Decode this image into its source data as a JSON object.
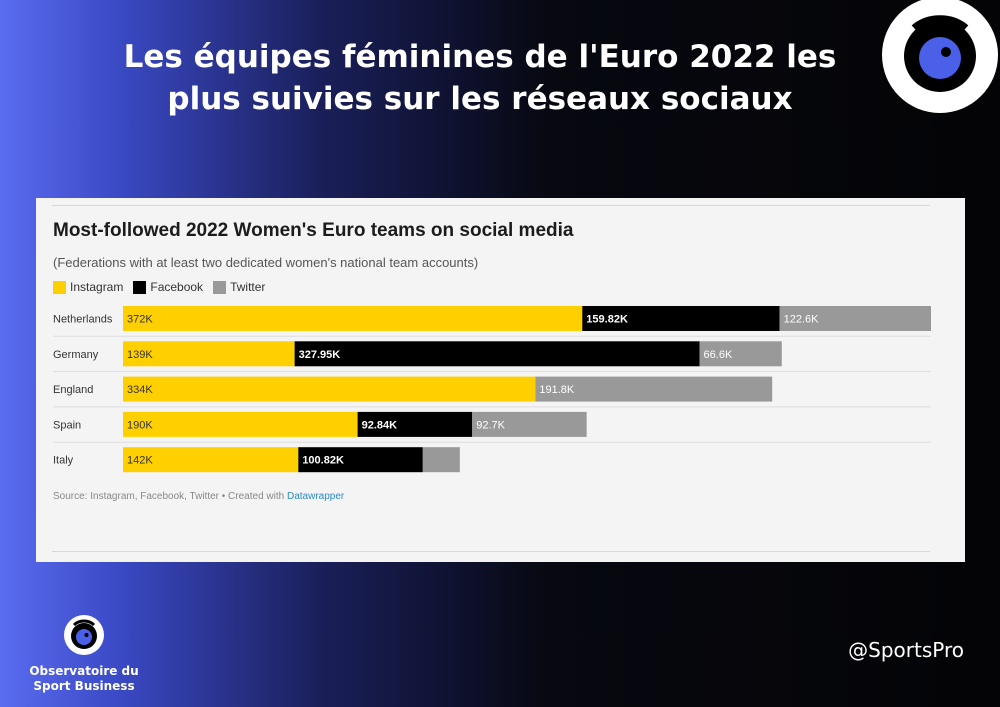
{
  "headline": {
    "line1": "Les équipes féminines de l'Euro 2022 les",
    "line2": "plus suivies sur les réseaux sociaux"
  },
  "brand": {
    "line1": "Observatoire du",
    "line2": "Sport Business",
    "icon": "eye-logo-icon"
  },
  "handle": "@SportsPro",
  "colors": {
    "instagram": "#ffd000",
    "facebook": "#000000",
    "twitter": "#999999",
    "accent": "#4a60e8"
  },
  "chart_data": {
    "type": "bar",
    "orientation": "horizontal",
    "stacked": true,
    "title": "Most-followed 2022 Women's Euro teams on social media",
    "subtitle": "(Federations with at least two dedicated women's national team accounts)",
    "legend_placement": "top-left",
    "categories": [
      "Netherlands",
      "Germany",
      "England",
      "Spain",
      "Italy"
    ],
    "series": [
      {
        "name": "Instagram",
        "values": [
          372000,
          139000,
          334000,
          190000,
          142000
        ],
        "labels": [
          "372K",
          "139K",
          "334K",
          "190K",
          "142K"
        ],
        "label_color": "#333333"
      },
      {
        "name": "Facebook",
        "values": [
          159820,
          327950,
          0,
          92840,
          100820
        ],
        "labels": [
          "159.82K",
          "327.95K",
          "",
          "92.84K",
          "100.82K"
        ],
        "label_color": "#ffffff"
      },
      {
        "name": "Twitter",
        "values": [
          122600,
          66600,
          191800,
          92700,
          30000
        ],
        "labels": [
          "122.6K",
          "66.6K",
          "191.8K",
          "92.7K",
          ""
        ],
        "label_color": "#ffffff"
      }
    ],
    "source": "Source: Instagram, Facebook, Twitter • Created with ",
    "credit": "Datawrapper"
  }
}
